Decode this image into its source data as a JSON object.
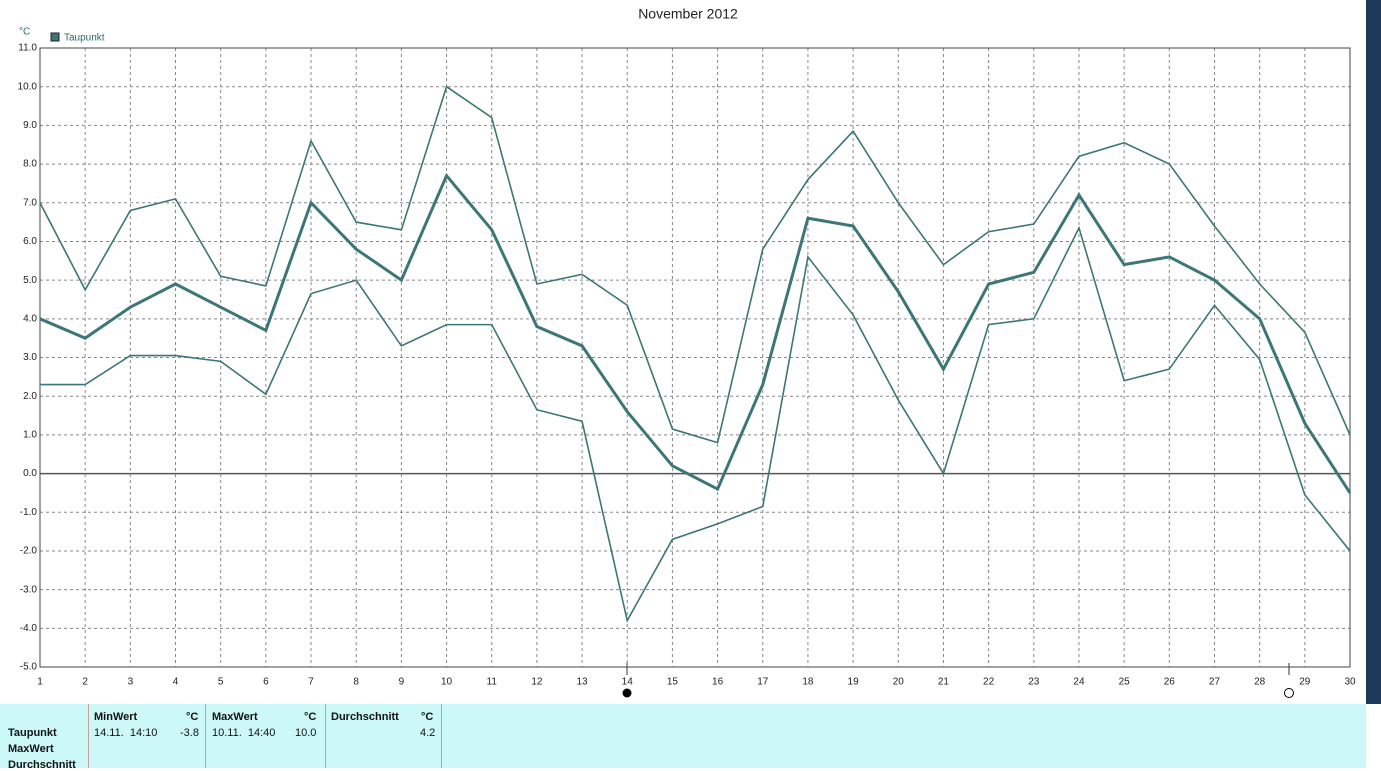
{
  "chart_data": {
    "type": "line",
    "title": "November 2012",
    "y_unit": "°C",
    "x": [
      1,
      2,
      3,
      4,
      5,
      6,
      7,
      8,
      9,
      10,
      11,
      12,
      13,
      14,
      15,
      16,
      17,
      18,
      19,
      20,
      21,
      22,
      23,
      24,
      25,
      26,
      27,
      28,
      29,
      30
    ],
    "series": [
      {
        "name": "Taupunkt",
        "color": "#3d7676",
        "values": [
          4.0,
          3.5,
          4.3,
          4.9,
          4.3,
          3.7,
          7.0,
          5.8,
          5.0,
          7.7,
          6.3,
          3.8,
          3.3,
          1.6,
          0.2,
          -0.4,
          2.3,
          6.6,
          6.4,
          4.7,
          2.7,
          4.9,
          5.2,
          7.2,
          5.4,
          5.6,
          5.0,
          4.0,
          1.3,
          -0.5
        ]
      },
      {
        "color": "#3d7676",
        "values": [
          7.0,
          4.75,
          6.8,
          7.1,
          5.1,
          4.85,
          8.6,
          6.5,
          6.3,
          10.0,
          9.2,
          4.9,
          5.15,
          4.35,
          1.15,
          0.8,
          5.8,
          7.6,
          8.85,
          7.0,
          5.4,
          6.25,
          6.45,
          8.2,
          8.55,
          8.0,
          6.4,
          4.9,
          3.65,
          1.0
        ]
      },
      {
        "color": "#3d7676",
        "values": [
          2.3,
          2.3,
          3.05,
          3.05,
          2.9,
          2.05,
          4.65,
          5.0,
          3.3,
          3.85,
          3.85,
          1.65,
          1.35,
          -3.8,
          -1.7,
          -1.3,
          -0.85,
          5.6,
          4.1,
          1.9,
          0.0,
          3.85,
          4.0,
          6.35,
          2.4,
          2.7,
          4.35,
          2.95,
          -0.55,
          -2.0
        ]
      }
    ],
    "xlim": [
      1,
      30
    ],
    "xticks": [
      1,
      2,
      3,
      4,
      5,
      6,
      7,
      8,
      9,
      10,
      11,
      12,
      13,
      14,
      15,
      16,
      17,
      18,
      19,
      20,
      21,
      22,
      23,
      24,
      25,
      26,
      27,
      28,
      29,
      30
    ],
    "ylim": [
      -5,
      11
    ],
    "yticks": [
      {
        "value": -5,
        "label": "-5.0"
      },
      {
        "value": -4,
        "label": "-4.0"
      },
      {
        "value": -3,
        "label": "-3.0"
      },
      {
        "value": -2,
        "label": "-2.0"
      },
      {
        "value": -1,
        "label": "-1.0"
      },
      {
        "value": 0,
        "label": "0.0"
      },
      {
        "value": 1,
        "label": "1.0"
      },
      {
        "value": 2,
        "label": "2.0"
      },
      {
        "value": 3,
        "label": "3.0"
      },
      {
        "value": 4,
        "label": "4.0"
      },
      {
        "value": 5,
        "label": "5.0"
      },
      {
        "value": 6,
        "label": "6.0"
      },
      {
        "value": 7,
        "label": "7.0"
      },
      {
        "value": 8,
        "label": "8.0"
      },
      {
        "value": 9,
        "label": "9.0"
      },
      {
        "value": 10,
        "label": "10.0"
      },
      {
        "value": 11,
        "label": "11.0"
      }
    ],
    "grid": true,
    "legend": "top-left"
  },
  "table": {
    "row_labels": [
      "Taupunkt",
      "MaxWert",
      "Durchschnitt"
    ],
    "columns": [
      {
        "header": "MinWert",
        "unit": "°C",
        "time": "14.11.  14:10",
        "value": "-3.8"
      },
      {
        "header": "MaxWert",
        "unit": "°C",
        "time": "10.11.  14:40",
        "value": "10.0"
      },
      {
        "header": "Durchschnitt",
        "unit": "°C",
        "value": "4.2"
      }
    ]
  }
}
